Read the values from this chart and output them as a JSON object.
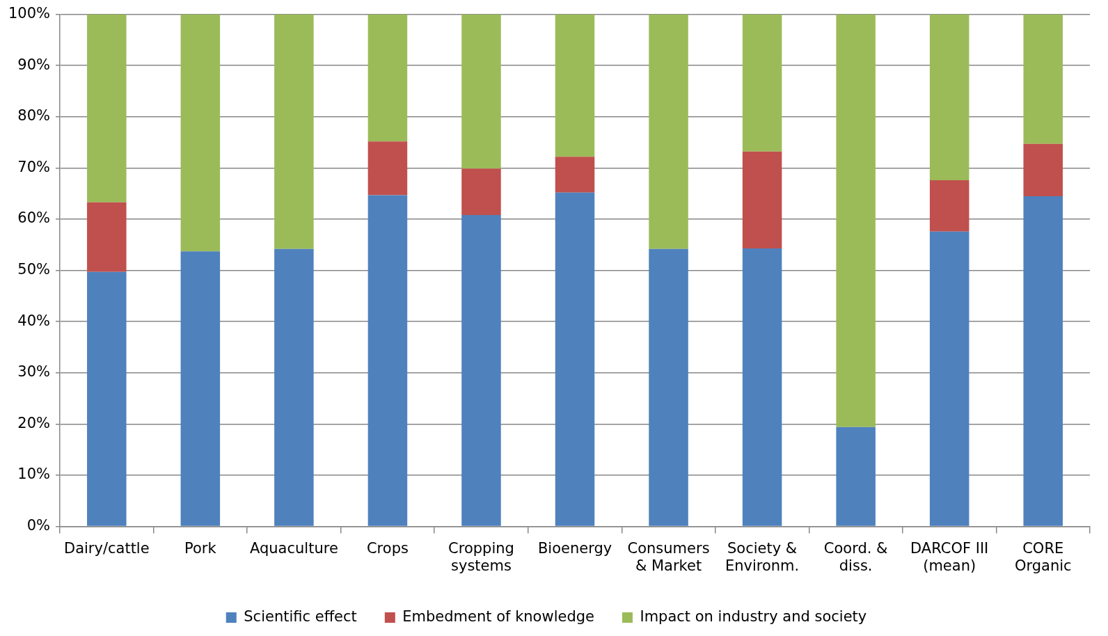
{
  "chart_data": {
    "type": "bar",
    "stacked": true,
    "categories": [
      "Dairy/cattle",
      "Pork",
      "Aquaculture",
      "Crops",
      "Cropping systems",
      "Bioenergy",
      "Consumers & Market",
      "Society & Environm.",
      "Coord. & diss.",
      "DARCOF III (mean)",
      "CORE Organic"
    ],
    "series": [
      {
        "name": "Scientific effect",
        "color": "#4f81bd",
        "values": [
          49.7,
          53.7,
          54.2,
          64.7,
          60.8,
          65.2,
          54.2,
          54.3,
          19.4,
          57.6,
          64.5
        ]
      },
      {
        "name": "Embedment of knowledge",
        "color": "#c0504d",
        "values": [
          13.6,
          0,
          0,
          10.5,
          9.1,
          7.0,
          0,
          18.9,
          0,
          10.0,
          10.2
        ]
      },
      {
        "name": "Impact on industry and society",
        "color": "#9bbb59",
        "values": [
          36.7,
          46.3,
          45.8,
          24.8,
          30.1,
          27.8,
          45.8,
          26.8,
          80.6,
          32.4,
          25.3
        ]
      }
    ],
    "ylim": [
      0,
      100
    ],
    "yticks": [
      {
        "value": 0,
        "label": "0%"
      },
      {
        "value": 10,
        "label": "10%"
      },
      {
        "value": 20,
        "label": "20%"
      },
      {
        "value": 30,
        "label": "30%"
      },
      {
        "value": 40,
        "label": "40%"
      },
      {
        "value": 50,
        "label": "50%"
      },
      {
        "value": 60,
        "label": "60%"
      },
      {
        "value": 70,
        "label": "70%"
      },
      {
        "value": 80,
        "label": "80%"
      },
      {
        "value": 90,
        "label": "90%"
      },
      {
        "value": 100,
        "label": "100%"
      }
    ],
    "grid": "y",
    "legend": "bottom"
  }
}
